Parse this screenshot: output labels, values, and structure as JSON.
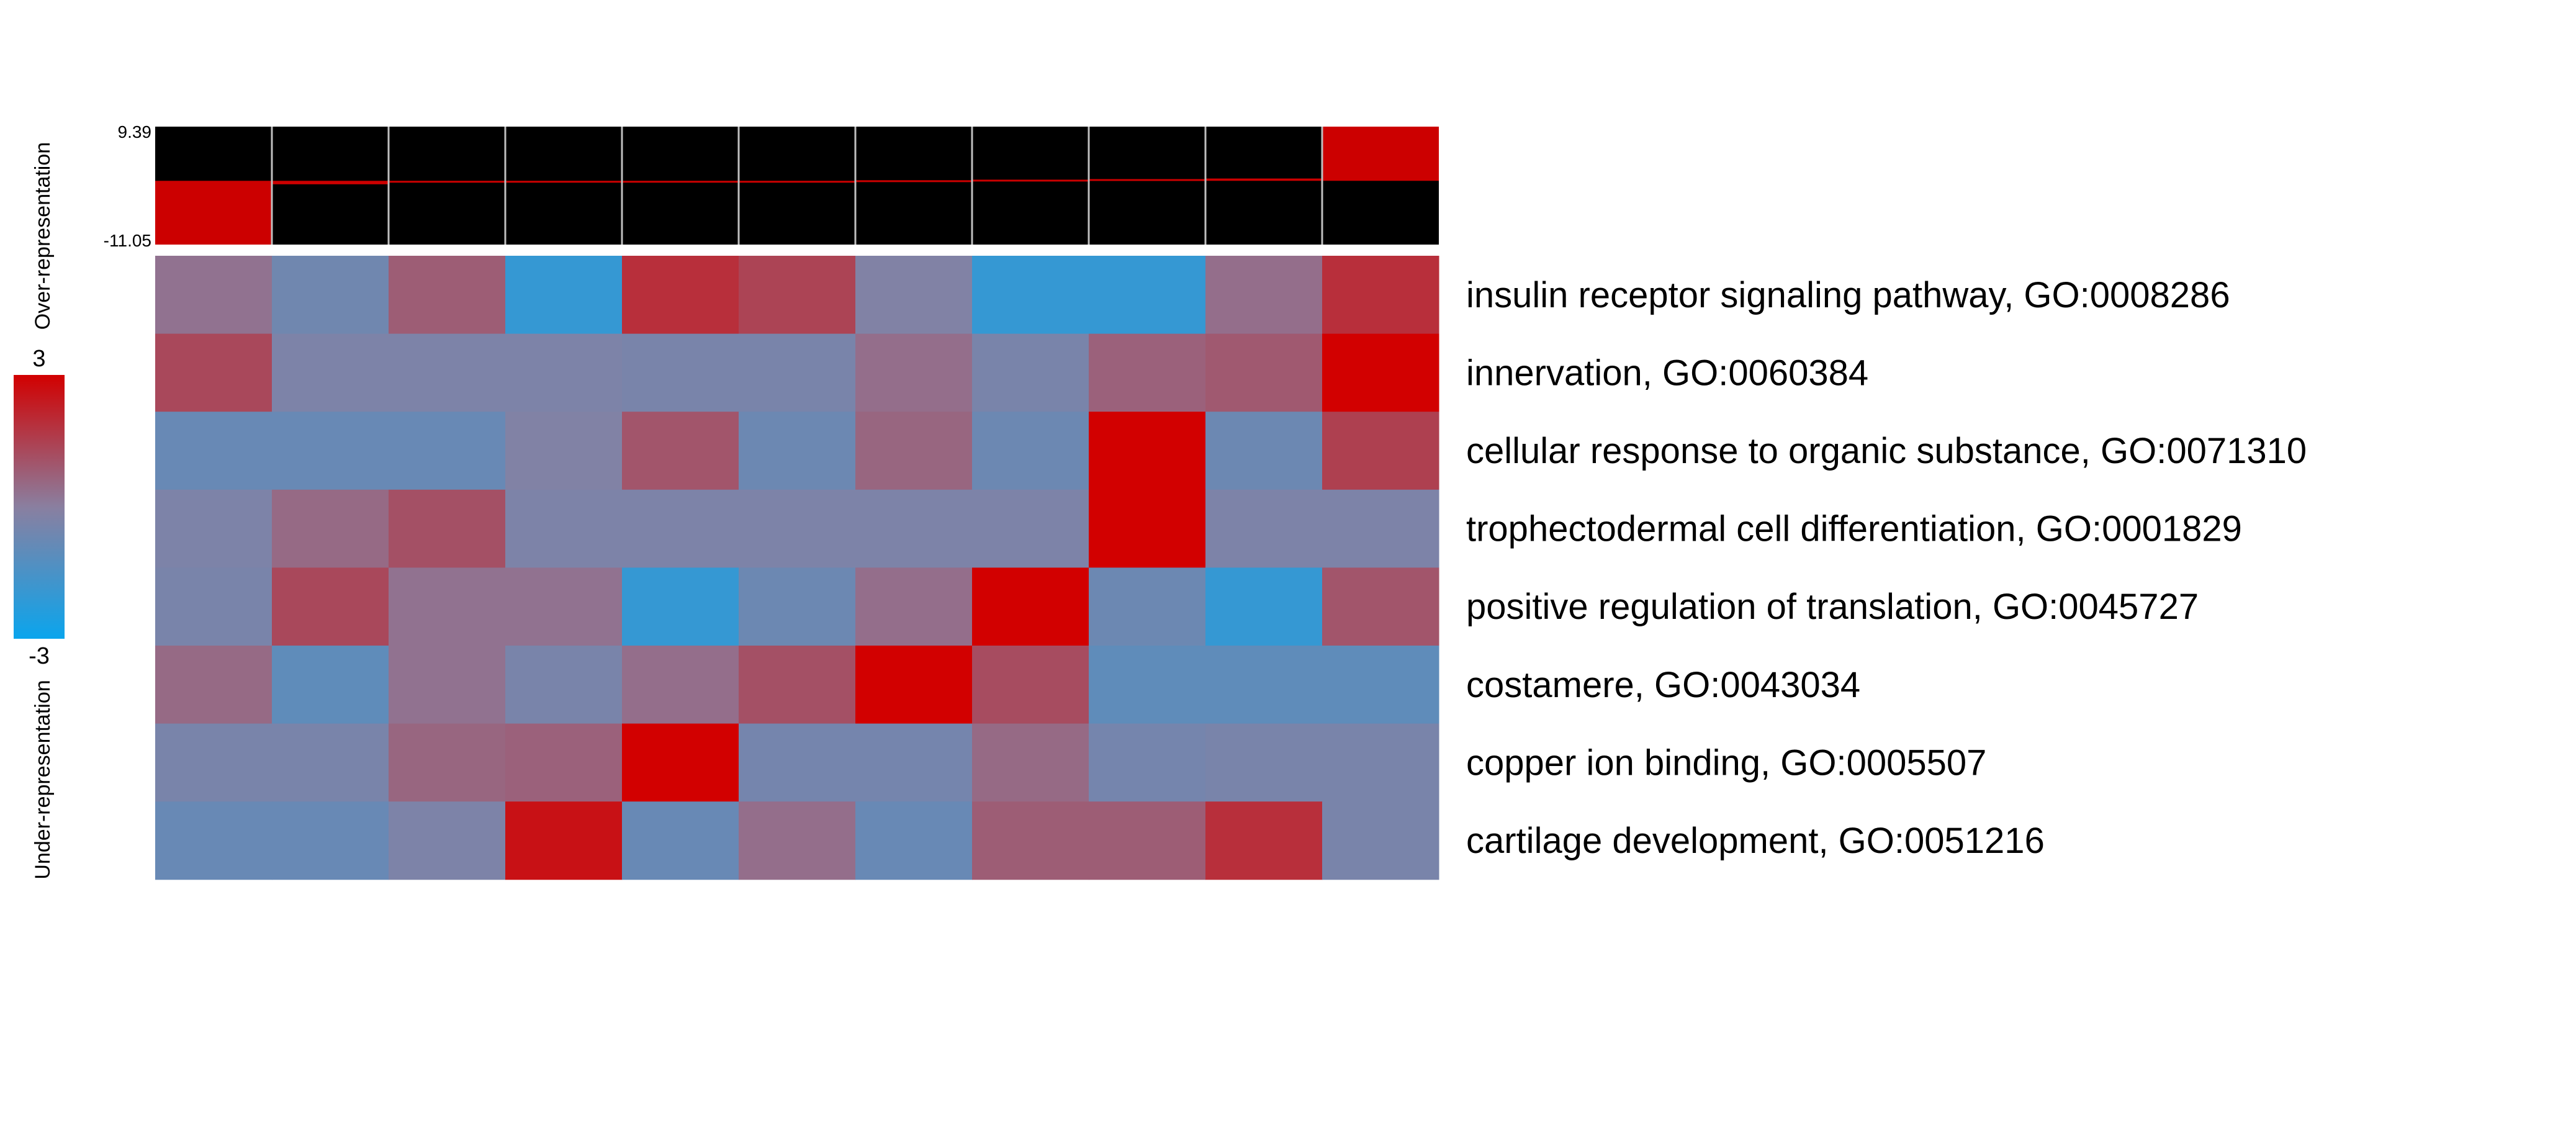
{
  "chart_data": {
    "type": "heatmap",
    "side_labels": {
      "top": "Over-representation",
      "bottom": "Under-representation"
    },
    "color_scale": {
      "max_label": "3",
      "min_label": "-3",
      "min": -3,
      "max": 3,
      "stops": [
        {
          "value": -3,
          "color": "#0aa5ed"
        },
        {
          "value": 0,
          "color": "#8a7fa0"
        },
        {
          "value": 3,
          "color": "#d20000"
        }
      ]
    },
    "bar_panel": {
      "max_label": "9.39",
      "min_label": "-11.05",
      "max": 9.39,
      "min": -11.05,
      "background_color": "#000000",
      "bar_color": "#cc0000",
      "grid_color": "#bfbfbf",
      "values": [
        -11.05,
        -0.6,
        -0.3,
        -0.2,
        -0.1,
        0.0,
        0.1,
        0.2,
        0.3,
        0.4,
        9.39
      ]
    },
    "rows": [
      "insulin receptor signaling pathway, GO:0008286",
      "innervation, GO:0060384",
      "cellular response to organic substance, GO:0071310",
      "trophectodermal cell differentiation, GO:0001829",
      "positive regulation of translation, GO:0045727",
      "costamere, GO:0043034",
      "copper ion binding, GO:0005507",
      "cartilage development, GO:0051216"
    ],
    "values": [
      [
        0.3,
        -0.6,
        0.8,
        -2.0,
        1.9,
        1.4,
        -0.2,
        -2.0,
        -2.0,
        0.4,
        1.9
      ],
      [
        1.3,
        -0.3,
        -0.3,
        -0.3,
        -0.4,
        -0.4,
        0.4,
        -0.4,
        0.7,
        0.9,
        3.0
      ],
      [
        -0.8,
        -0.8,
        -0.8,
        -0.2,
        1.0,
        -0.7,
        0.6,
        -0.7,
        3.0,
        -0.7,
        1.5
      ],
      [
        -0.3,
        0.5,
        1.1,
        -0.3,
        -0.3,
        -0.3,
        -0.3,
        -0.3,
        3.0,
        -0.3,
        -0.3
      ],
      [
        -0.4,
        1.3,
        0.3,
        0.3,
        -2.0,
        -0.7,
        0.4,
        3.0,
        -0.7,
        -2.0,
        1.0
      ],
      [
        0.5,
        -1.0,
        0.3,
        -0.4,
        0.4,
        1.1,
        3.0,
        1.2,
        -1.0,
        -1.0,
        -1.0
      ],
      [
        -0.4,
        -0.4,
        0.6,
        0.7,
        3.0,
        -0.5,
        -0.5,
        0.5,
        -0.5,
        -0.4,
        -0.4
      ],
      [
        -0.8,
        -0.8,
        -0.3,
        2.6,
        -0.8,
        0.4,
        -0.8,
        0.8,
        0.8,
        1.9,
        -0.4
      ]
    ]
  }
}
